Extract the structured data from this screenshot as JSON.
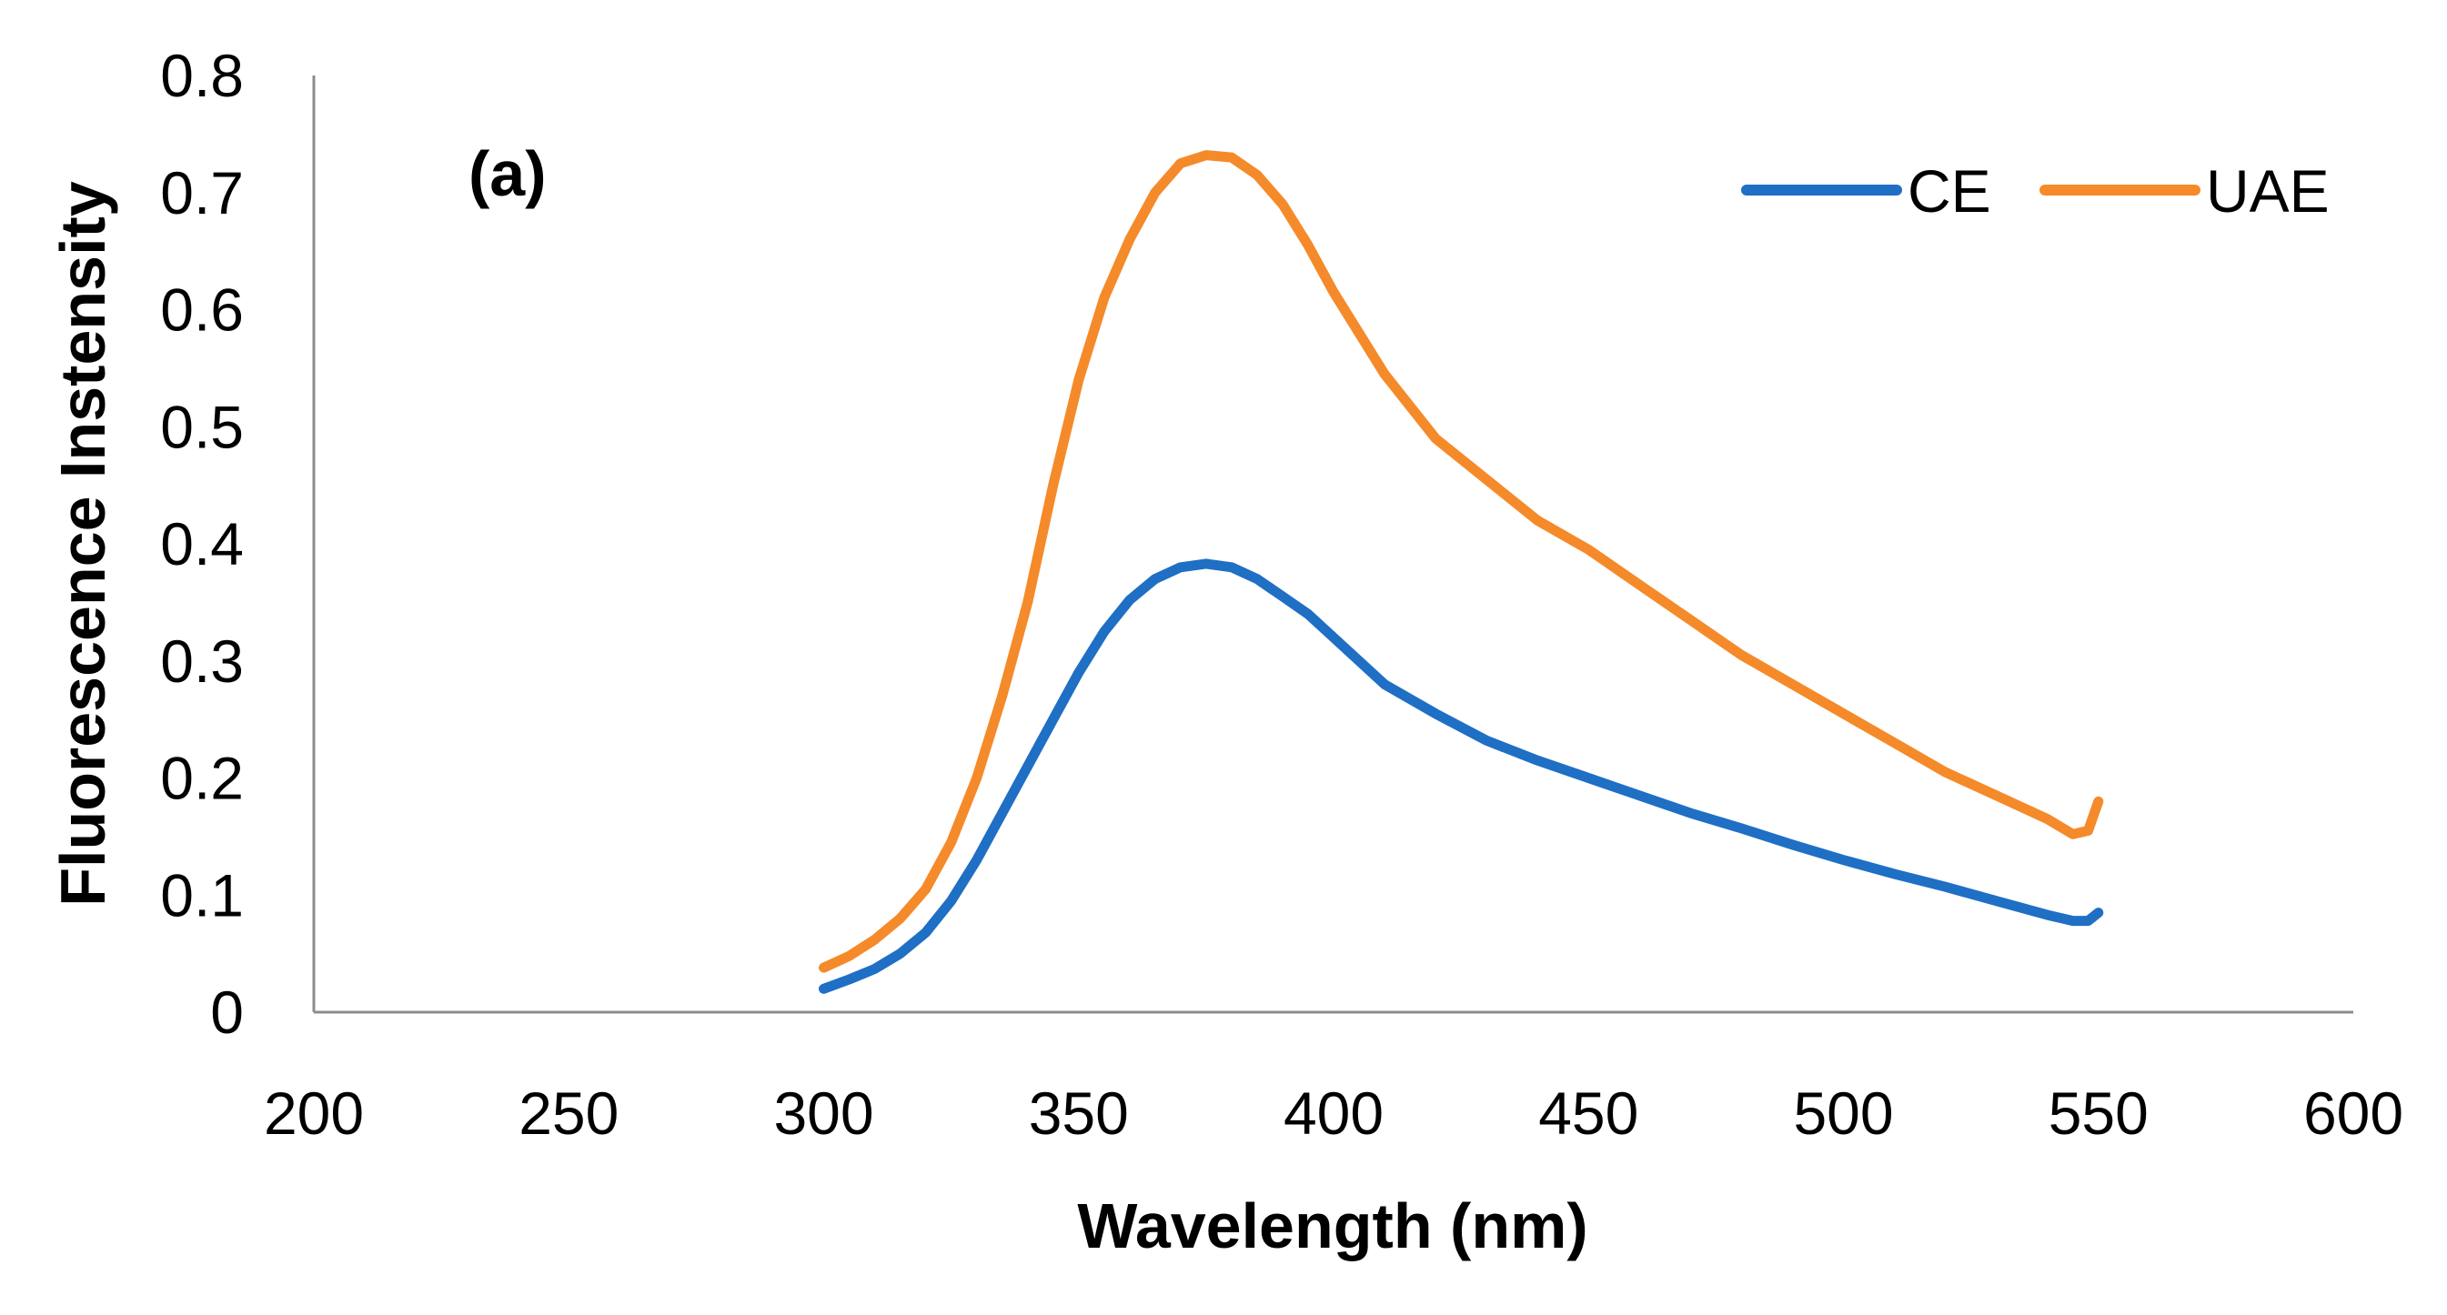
{
  "chart_data": {
    "type": "line",
    "panel_label": "(a)",
    "xlabel": "Wavelength (nm)",
    "ylabel": "Fluorescence Instensity",
    "xlim": [
      200,
      600
    ],
    "ylim": [
      0,
      0.8
    ],
    "x_ticks": [
      "200",
      "250",
      "300",
      "350",
      "400",
      "450",
      "500",
      "550",
      "600"
    ],
    "y_ticks": [
      "0",
      "0.1",
      "0.2",
      "0.3",
      "0.4",
      "0.5",
      "0.6",
      "0.7",
      "0.8"
    ],
    "legend_position": "top-right",
    "series": [
      {
        "name": "CE",
        "color": "#1F6FC5",
        "x": [
          300,
          305,
          310,
          315,
          320,
          325,
          330,
          335,
          340,
          345,
          350,
          355,
          360,
          365,
          370,
          375,
          380,
          385,
          390,
          395,
          400,
          410,
          420,
          430,
          440,
          450,
          460,
          470,
          480,
          490,
          500,
          510,
          520,
          530,
          540,
          545,
          548,
          550
        ],
        "y": [
          0.02,
          0.028,
          0.037,
          0.05,
          0.068,
          0.095,
          0.13,
          0.17,
          0.21,
          0.25,
          0.29,
          0.325,
          0.352,
          0.37,
          0.38,
          0.383,
          0.38,
          0.37,
          0.355,
          0.34,
          0.32,
          0.28,
          0.255,
          0.232,
          0.215,
          0.2,
          0.185,
          0.17,
          0.157,
          0.143,
          0.13,
          0.118,
          0.107,
          0.095,
          0.083,
          0.078,
          0.078,
          0.085
        ]
      },
      {
        "name": "UAE",
        "color": "#F58A2A",
        "x": [
          300,
          305,
          310,
          315,
          320,
          325,
          330,
          335,
          340,
          345,
          350,
          355,
          360,
          365,
          370,
          375,
          380,
          385,
          390,
          395,
          400,
          410,
          420,
          430,
          440,
          450,
          460,
          470,
          480,
          490,
          500,
          510,
          520,
          530,
          540,
          545,
          548,
          550
        ],
        "y": [
          0.038,
          0.048,
          0.062,
          0.08,
          0.105,
          0.145,
          0.2,
          0.27,
          0.35,
          0.45,
          0.54,
          0.61,
          0.66,
          0.7,
          0.725,
          0.732,
          0.73,
          0.715,
          0.69,
          0.655,
          0.615,
          0.545,
          0.49,
          0.455,
          0.42,
          0.395,
          0.365,
          0.335,
          0.305,
          0.28,
          0.255,
          0.23,
          0.205,
          0.185,
          0.165,
          0.152,
          0.155,
          0.18
        ]
      }
    ]
  }
}
